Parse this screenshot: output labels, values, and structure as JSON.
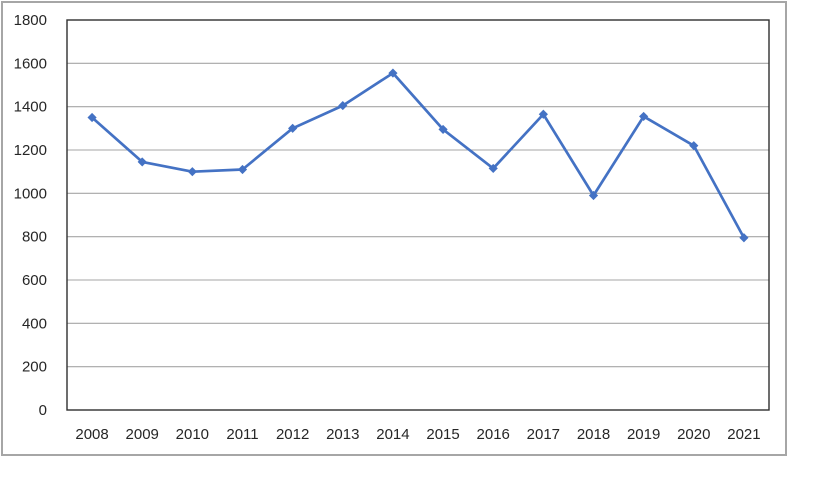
{
  "chart_data": {
    "type": "line",
    "title": "",
    "xlabel": "",
    "ylabel": "",
    "categories": [
      "2008",
      "2009",
      "2010",
      "2011",
      "2012",
      "2013",
      "2014",
      "2015",
      "2016",
      "2017",
      "2018",
      "2019",
      "2020",
      "2021"
    ],
    "series": [
      {
        "name": "",
        "values": [
          1350,
          1145,
          1100,
          1110,
          1300,
          1405,
          1555,
          1295,
          1115,
          1365,
          990,
          1355,
          1220,
          795
        ]
      }
    ],
    "ylim": [
      0,
      1800
    ],
    "yticks": [
      0,
      200,
      400,
      600,
      800,
      1000,
      1200,
      1400,
      1600,
      1800
    ],
    "grid": true,
    "legend": "none",
    "marker": "diamond",
    "colors": {
      "series": "#4472C4",
      "gridline": "#A6A6A6",
      "plot_border": "#2F2F2F",
      "chart_border": "#A6A6A6",
      "tick_text": "#262626",
      "background": "#FFFFFF"
    }
  }
}
